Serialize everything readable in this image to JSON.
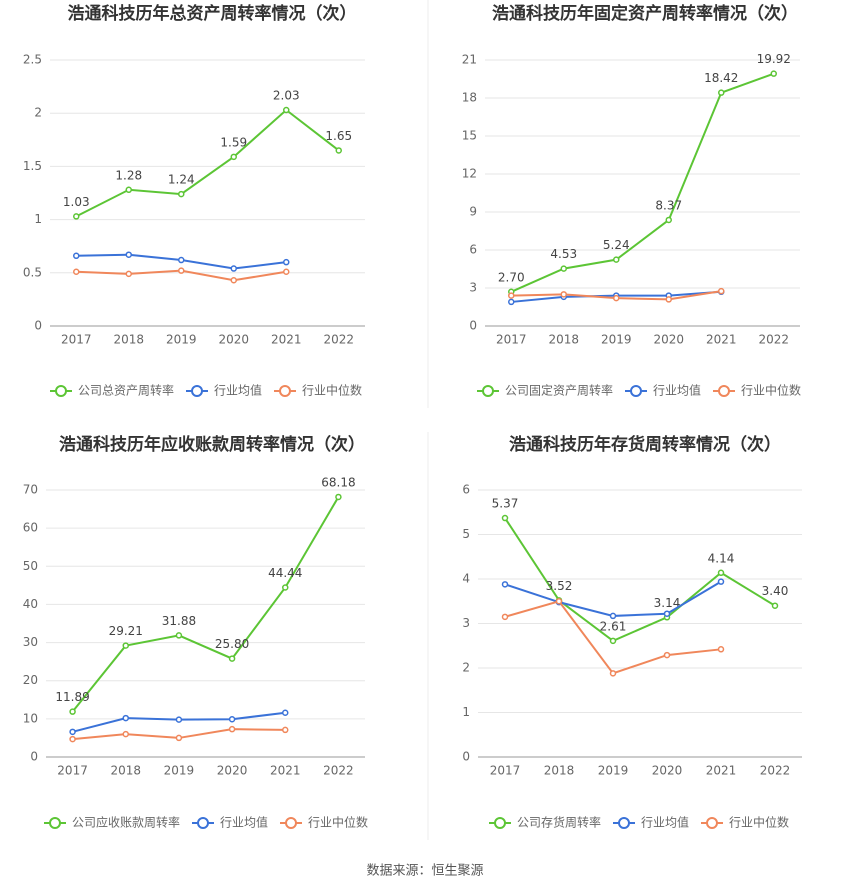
{
  "chart_data": [
    {
      "type": "line",
      "title": "浩通科技历年总资产周转率情况（次）",
      "categories": [
        "2017",
        "2018",
        "2019",
        "2020",
        "2021",
        "2022"
      ],
      "series": [
        {
          "name": "公司总资产周转率",
          "color": "#5cc535",
          "values": [
            1.03,
            1.28,
            1.24,
            1.59,
            2.03,
            1.65
          ],
          "value_labels": [
            "1.03",
            "1.28",
            "1.24",
            "1.59",
            "2.03",
            "1.65"
          ]
        },
        {
          "name": "行业均值",
          "color": "#3a72d8",
          "values": [
            0.66,
            0.67,
            0.62,
            0.54,
            0.6,
            null
          ]
        },
        {
          "name": "行业中位数",
          "color": "#f0875b",
          "values": [
            0.51,
            0.49,
            0.52,
            0.43,
            0.51,
            null
          ]
        }
      ],
      "ylim": [
        0,
        2.5
      ],
      "yticks": [
        0,
        0.5,
        1,
        1.5,
        2,
        2.5
      ],
      "grid": true
    },
    {
      "type": "line",
      "title": "浩通科技历年固定资产周转率情况（次）",
      "categories": [
        "2017",
        "2018",
        "2019",
        "2020",
        "2021",
        "2022"
      ],
      "series": [
        {
          "name": "公司固定资产周转率",
          "color": "#5cc535",
          "values": [
            2.7,
            4.53,
            5.24,
            8.37,
            18.42,
            19.92
          ],
          "value_labels": [
            "2.70",
            "4.53",
            "5.24",
            "8.37",
            "18.42",
            "19.92"
          ]
        },
        {
          "name": "行业均值",
          "color": "#3a72d8",
          "values": [
            1.9,
            2.3,
            2.4,
            2.4,
            2.7,
            null
          ]
        },
        {
          "name": "行业中位数",
          "color": "#f0875b",
          "values": [
            2.4,
            2.5,
            2.2,
            2.1,
            2.75,
            null
          ]
        }
      ],
      "ylim": [
        0,
        21
      ],
      "yticks": [
        0,
        3,
        6,
        9,
        12,
        15,
        18,
        21
      ],
      "grid": true
    },
    {
      "type": "line",
      "title": "浩通科技历年应收账款周转率情况（次）",
      "categories": [
        "2017",
        "2018",
        "2019",
        "2020",
        "2021",
        "2022"
      ],
      "series": [
        {
          "name": "公司应收账款周转率",
          "color": "#5cc535",
          "values": [
            11.89,
            29.21,
            31.88,
            25.8,
            44.44,
            68.18
          ],
          "value_labels": [
            "11.89",
            "29.21",
            "31.88",
            "25.80",
            "44.44",
            "68.18"
          ]
        },
        {
          "name": "行业均值",
          "color": "#3a72d8",
          "values": [
            6.6,
            10.2,
            9.8,
            9.9,
            11.6,
            null
          ]
        },
        {
          "name": "行业中位数",
          "color": "#f0875b",
          "values": [
            4.7,
            6.0,
            5.0,
            7.3,
            7.1,
            null
          ]
        }
      ],
      "ylim": [
        0,
        70
      ],
      "yticks": [
        0,
        10,
        20,
        30,
        40,
        50,
        60,
        70
      ],
      "grid": true
    },
    {
      "type": "line",
      "title": "浩通科技历年存货周转率情况（次）",
      "categories": [
        "2017",
        "2018",
        "2019",
        "2020",
        "2021",
        "2022"
      ],
      "series": [
        {
          "name": "公司存货周转率",
          "color": "#5cc535",
          "values": [
            5.37,
            3.52,
            2.61,
            3.14,
            4.14,
            3.4
          ],
          "value_labels": [
            "5.37",
            "3.52",
            "2.61",
            "3.14",
            "4.14",
            "3.40"
          ]
        },
        {
          "name": "行业均值",
          "color": "#3a72d8",
          "values": [
            3.88,
            3.48,
            3.17,
            3.22,
            3.94,
            null
          ]
        },
        {
          "name": "行业中位数",
          "color": "#f0875b",
          "values": [
            3.15,
            3.5,
            1.88,
            2.29,
            2.42,
            null
          ]
        }
      ],
      "ylim": [
        0,
        6
      ],
      "yticks": [
        0,
        1,
        2,
        3,
        4,
        5,
        6
      ],
      "grid": true
    }
  ],
  "source": "数据来源：恒生聚源"
}
